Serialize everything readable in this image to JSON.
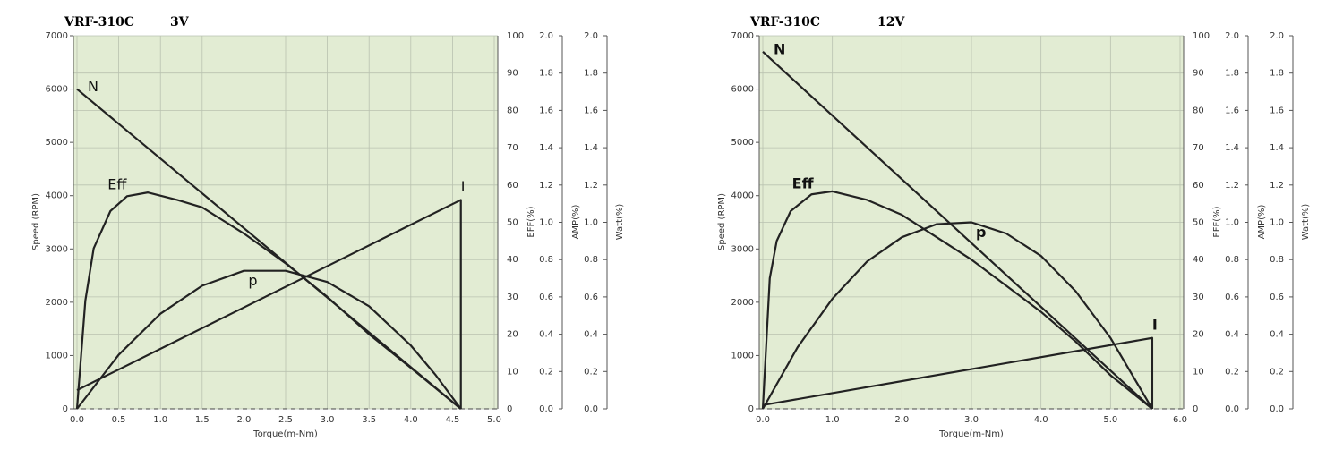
{
  "chart_data": [
    {
      "type": "line",
      "title": "VRF-310C",
      "subtitle": "3V",
      "xlabel": "Torque(m-Nm)",
      "xlim": [
        0,
        5
      ],
      "xticks": [
        {
          "value": 0,
          "label": "0.0"
        },
        0.5,
        {
          "value": 1,
          "label": "1.0"
        },
        1.5,
        {
          "value": 2,
          "label": "2.0"
        },
        2.5,
        {
          "value": 3,
          "label": "3.0"
        },
        3.5,
        {
          "value": 4,
          "label": "4.0"
        },
        4.5,
        {
          "value": 5,
          "label": "5.0"
        }
      ],
      "ylabel": "Speed (RPM)",
      "ylim": [
        0,
        7000
      ],
      "yticks": [
        0,
        1000,
        2000,
        3000,
        4000,
        5000,
        6000,
        7000
      ],
      "y2label": "EFF(%)",
      "y2lim": [
        0,
        100
      ],
      "y2ticks": [
        0,
        10,
        20,
        30,
        40,
        50,
        60,
        70,
        80,
        90,
        100
      ],
      "y3label": "AMP(%)",
      "y3lim": [
        0,
        2
      ],
      "y3ticks": [
        {
          "value": 0,
          "label": "0.0"
        },
        0.2,
        0.4,
        0.6,
        0.8,
        {
          "value": 1,
          "label": "1.0"
        },
        1.2,
        1.4,
        1.6,
        1.8,
        {
          "value": 2,
          "label": "2.0"
        }
      ],
      "y4label": "Watt(%)",
      "y4lim": [
        0,
        2
      ],
      "y4ticks": [
        {
          "value": 0,
          "label": "0.0"
        },
        0.2,
        0.4,
        0.6,
        0.8,
        {
          "value": 1,
          "label": "1.0"
        },
        1.2,
        1.4,
        1.6,
        1.8,
        {
          "value": 2,
          "label": "2.0"
        }
      ],
      "grid": true,
      "series": [
        {
          "name": "N",
          "color": "#222222",
          "axis": "y",
          "x": [
            0,
            4.6
          ],
          "values": [
            6000,
            0
          ]
        },
        {
          "name": "Eff",
          "color": "#222222",
          "axis": "y2",
          "x": [
            0,
            0.1,
            0.2,
            0.4,
            0.6,
            0.85,
            1.2,
            1.5,
            2.0,
            2.5,
            3.0,
            3.5,
            4.0,
            4.6
          ],
          "values": [
            0,
            29,
            43,
            53,
            57,
            58,
            56,
            54,
            47,
            39,
            30,
            20,
            11,
            0
          ]
        },
        {
          "name": "p",
          "color": "#222222",
          "axis": "y4",
          "x": [
            0,
            0.5,
            1.0,
            1.5,
            2.0,
            2.5,
            3.0,
            3.5,
            4.0,
            4.3,
            4.6
          ],
          "values": [
            0,
            0.29,
            0.51,
            0.66,
            0.74,
            0.74,
            0.68,
            0.55,
            0.34,
            0.18,
            0
          ]
        },
        {
          "name": "I",
          "color": "#222222",
          "axis": "y3",
          "x": [
            0,
            4.6,
            4.6
          ],
          "values": [
            0.1,
            1.12,
            0
          ]
        }
      ]
    },
    {
      "type": "line",
      "title": "VRF-310C",
      "subtitle": "12V",
      "xlabel": "Torque(m-Nm)",
      "xlim": [
        0,
        6
      ],
      "xticks": [
        {
          "value": 0,
          "label": "0.0"
        },
        {
          "value": 1,
          "label": "1.0"
        },
        {
          "value": 2,
          "label": "2.0"
        },
        {
          "value": 3,
          "label": "3.0"
        },
        {
          "value": 4,
          "label": "4.0"
        },
        {
          "value": 5,
          "label": "5.0"
        },
        {
          "value": 6,
          "label": "6.0"
        }
      ],
      "ylabel": "Speed (RPM)",
      "ylim": [
        0,
        7000
      ],
      "yticks": [
        0,
        1000,
        2000,
        3000,
        4000,
        5000,
        6000,
        7000
      ],
      "y2label": "EFF(%)",
      "y2lim": [
        0,
        100
      ],
      "y2ticks": [
        0,
        10,
        20,
        30,
        40,
        50,
        60,
        70,
        80,
        90,
        100
      ],
      "y3label": "AMP(%)",
      "y3lim": [
        0,
        2
      ],
      "y3ticks": [
        {
          "value": 0,
          "label": "0.0"
        },
        0.2,
        0.4,
        0.6,
        0.8,
        {
          "value": 1,
          "label": "1.0"
        },
        1.2,
        1.4,
        1.6,
        1.8,
        {
          "value": 2,
          "label": "2.0"
        }
      ],
      "y4label": "Watt(%)",
      "y4lim": [
        0,
        2
      ],
      "y4ticks": [
        {
          "value": 0,
          "label": "0.0"
        },
        0.2,
        0.4,
        0.6,
        0.8,
        {
          "value": 1,
          "label": "1.0"
        },
        1.2,
        1.4,
        1.6,
        1.8,
        {
          "value": 2,
          "label": "2.0"
        }
      ],
      "grid": true,
      "series": [
        {
          "name": "N",
          "color": "#222222",
          "axis": "y",
          "x": [
            0,
            5.6
          ],
          "values": [
            6700,
            0
          ]
        },
        {
          "name": "Eff",
          "color": "#222222",
          "axis": "y2",
          "x": [
            0,
            0.1,
            0.2,
            0.4,
            0.7,
            1.0,
            1.5,
            2.0,
            2.5,
            3.0,
            3.5,
            4.0,
            4.5,
            5.0,
            5.6
          ],
          "values": [
            0,
            35,
            45,
            53,
            57.5,
            58.3,
            56,
            52,
            46,
            40,
            33,
            26,
            18,
            9,
            0
          ]
        },
        {
          "name": "p",
          "color": "#222222",
          "axis": "y4",
          "x": [
            0,
            0.5,
            1.0,
            1.5,
            2.0,
            2.5,
            3.0,
            3.5,
            4.0,
            4.5,
            5.0,
            5.6
          ],
          "values": [
            0,
            0.33,
            0.59,
            0.79,
            0.92,
            0.99,
            1.0,
            0.94,
            0.82,
            0.63,
            0.38,
            0
          ]
        },
        {
          "name": "I",
          "color": "#222222",
          "axis": "y3",
          "x": [
            0,
            5.6,
            5.6
          ],
          "values": [
            0.02,
            0.38,
            0
          ]
        }
      ]
    }
  ]
}
